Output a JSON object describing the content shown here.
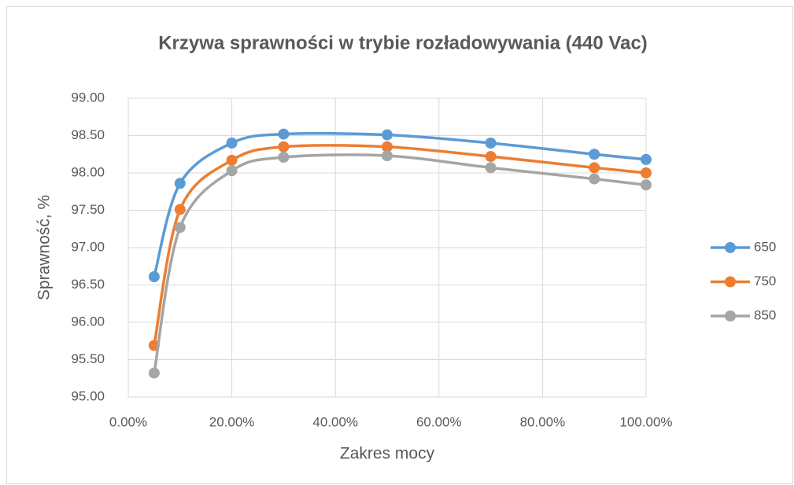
{
  "chart_data": {
    "type": "line",
    "title": "Krzywa sprawności w trybie rozładowywania (440 Vac)",
    "x_label": "Zakres mocy",
    "y_label": "Sprawność, %",
    "x": [
      5,
      10,
      20,
      30,
      50,
      70,
      90,
      100
    ],
    "series": [
      {
        "name": "650",
        "color": "#5b9bd5",
        "values": [
          96.61,
          97.86,
          98.4,
          98.52,
          98.51,
          98.4,
          98.25,
          98.18
        ]
      },
      {
        "name": "750",
        "color": "#ed7d31",
        "values": [
          95.69,
          97.51,
          98.17,
          98.35,
          98.35,
          98.22,
          98.07,
          98.0
        ]
      },
      {
        "name": "850",
        "color": "#a5a5a5",
        "values": [
          95.32,
          97.27,
          98.03,
          98.21,
          98.23,
          98.07,
          97.92,
          97.84
        ]
      }
    ],
    "xlim": [
      0,
      100
    ],
    "xticks": [
      {
        "value": 0,
        "label": "0.00%"
      },
      {
        "value": 20,
        "label": "20.00%"
      },
      {
        "value": 40,
        "label": "40.00%"
      },
      {
        "value": 60,
        "label": "60.00%"
      },
      {
        "value": 80,
        "label": "80.00%"
      },
      {
        "value": 100,
        "label": "100.00%"
      }
    ],
    "ylim": [
      95,
      99
    ],
    "yticks": [
      {
        "value": 95,
        "label": "95.00"
      },
      {
        "value": 95.5,
        "label": "95.50"
      },
      {
        "value": 96,
        "label": "96.00"
      },
      {
        "value": 96.5,
        "label": "96.50"
      },
      {
        "value": 97,
        "label": "97.00"
      },
      {
        "value": 97.5,
        "label": "97.50"
      },
      {
        "value": 98,
        "label": "98.00"
      },
      {
        "value": 98.5,
        "label": "98.50"
      },
      {
        "value": 99,
        "label": "99.00"
      }
    ],
    "grid": true,
    "legend": "right",
    "smooth": true
  }
}
